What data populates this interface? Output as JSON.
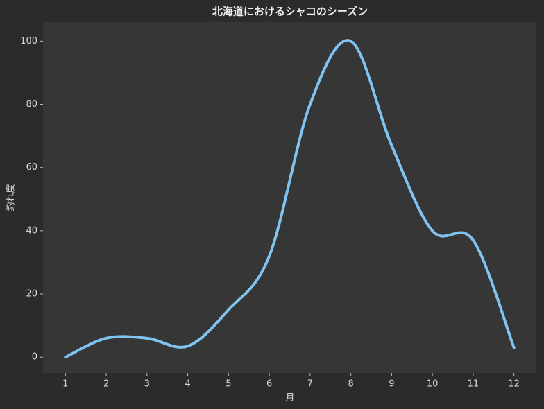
{
  "chart_data": {
    "type": "line",
    "title": "北海道におけるシャコのシーズン",
    "x_label": "月",
    "y_label": "釣れ度",
    "x": [
      1,
      2,
      3,
      4,
      5,
      6,
      7,
      8,
      9,
      10,
      11,
      12
    ],
    "series": [
      {
        "name": "釣れ度",
        "color": "#7fc3f0",
        "values": [
          0,
          6,
          6,
          3.5,
          15,
          32,
          80,
          100,
          67,
          40,
          37,
          3
        ]
      }
    ],
    "xlim": [
      0.45,
      12.55
    ],
    "xticks": [
      1,
      2,
      3,
      4,
      5,
      6,
      7,
      8,
      9,
      10,
      11,
      12
    ],
    "ylim": [
      -5,
      106
    ],
    "yticks": [
      0,
      20,
      40,
      60,
      80,
      100
    ],
    "grid": false
  }
}
